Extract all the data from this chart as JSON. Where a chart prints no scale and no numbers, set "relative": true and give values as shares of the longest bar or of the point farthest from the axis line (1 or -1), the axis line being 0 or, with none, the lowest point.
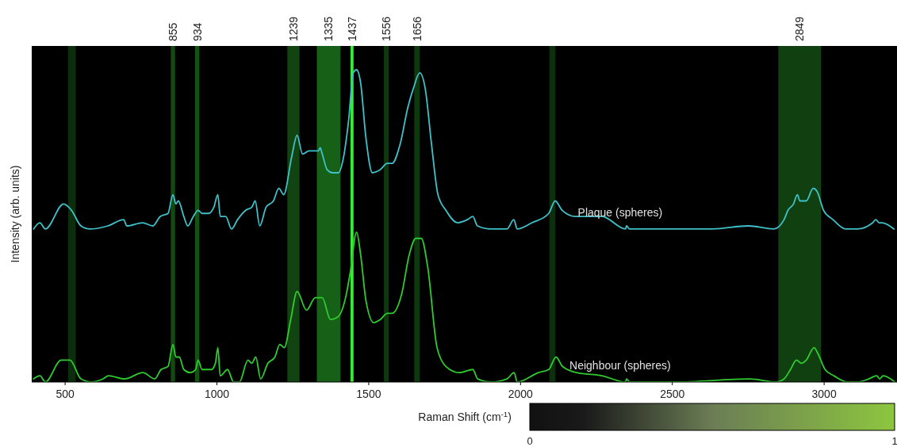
{
  "chart_data": {
    "type": "line",
    "relative": true,
    "xlabel": "Raman Shift (cm$^{-1}$)",
    "ylabel": "Intensity (arb. units)",
    "xlim": [
      390,
      3240
    ],
    "xticks": [
      500,
      1000,
      1500,
      2000,
      2500,
      3000
    ],
    "clim": [
      0,
      1
    ],
    "cticks": [
      0,
      1
    ],
    "bands": [
      {
        "axis": "x",
        "from": 510,
        "to": 535,
        "color": "#0c2e0c"
      },
      {
        "axis": "x",
        "from": 848,
        "to": 862,
        "color": "#124a12",
        "label": "855"
      },
      {
        "axis": "x",
        "from": 928,
        "to": 942,
        "color": "#145214",
        "label": "934"
      },
      {
        "axis": "x",
        "from": 1232,
        "to": 1272,
        "color": "#114411",
        "label": "1239"
      },
      {
        "axis": "x",
        "from": 1329,
        "to": 1407,
        "color": "#176017",
        "label": "1335"
      },
      {
        "axis": "x",
        "from": 1440,
        "to": 1450,
        "color": "#33ee33",
        "label": "1437"
      },
      {
        "axis": "x",
        "from": 1550,
        "to": 1566,
        "color": "#0e380e",
        "label": "1556"
      },
      {
        "axis": "x",
        "from": 1650,
        "to": 1668,
        "color": "#0e380e",
        "label": "1656"
      },
      {
        "axis": "x",
        "from": 2095,
        "to": 2115,
        "color": "#0c300c"
      },
      {
        "axis": "x",
        "from": 2849,
        "to": 2990,
        "color": "#103f10",
        "label": "2849"
      }
    ],
    "series": [
      {
        "name": "Plaque (spheres)",
        "color": "#3fc1c9",
        "x": [
          396,
          417,
          435,
          495,
          521,
          552,
          581,
          641,
          693,
          703,
          755,
          789,
          813,
          839,
          855,
          865,
          873,
          891,
          904,
          922,
          938,
          951,
          972,
          990,
          1003,
          1011,
          1029,
          1048,
          1068,
          1095,
          1115,
          1126,
          1141,
          1162,
          1186,
          1204,
          1220,
          1246,
          1264,
          1282,
          1303,
          1334,
          1340,
          1347,
          1363,
          1381,
          1400,
          1415,
          1434,
          1449,
          1460,
          1473,
          1491,
          1512,
          1538,
          1561,
          1577,
          1603,
          1629,
          1647,
          1668,
          1686,
          1707,
          1728,
          1754,
          1793,
          1825,
          1843,
          1858,
          1903,
          1955,
          1978,
          1989,
          2038,
          2093,
          2114,
          2137,
          2182,
          2268,
          2346,
          2349,
          2359,
          2450,
          2633,
          2750,
          2834,
          2868,
          2881,
          2899,
          2912,
          2920,
          2941,
          2964,
          2977,
          2998,
          3029,
          3071,
          3110,
          3160,
          3170,
          3181,
          3191,
          3230
        ],
        "values": [
          0.49,
          0.51,
          0.49,
          0.57,
          0.55,
          0.5,
          0.49,
          0.5,
          0.52,
          0.5,
          0.51,
          0.5,
          0.53,
          0.54,
          0.6,
          0.57,
          0.58,
          0.53,
          0.5,
          0.53,
          0.55,
          0.54,
          0.54,
          0.56,
          0.6,
          0.53,
          0.53,
          0.49,
          0.52,
          0.55,
          0.56,
          0.58,
          0.5,
          0.56,
          0.58,
          0.62,
          0.6,
          0.72,
          0.79,
          0.73,
          0.74,
          0.74,
          0.75,
          0.73,
          0.68,
          0.67,
          0.67,
          0.71,
          0.84,
          0.99,
          1.0,
          0.96,
          0.78,
          0.67,
          0.68,
          0.7,
          0.7,
          0.76,
          0.88,
          0.94,
          0.99,
          0.94,
          0.76,
          0.6,
          0.55,
          0.51,
          0.52,
          0.53,
          0.5,
          0.49,
          0.49,
          0.52,
          0.49,
          0.51,
          0.54,
          0.58,
          0.55,
          0.53,
          0.53,
          0.49,
          0.5,
          0.49,
          0.49,
          0.49,
          0.5,
          0.49,
          0.52,
          0.55,
          0.57,
          0.6,
          0.58,
          0.58,
          0.62,
          0.61,
          0.55,
          0.52,
          0.49,
          0.49,
          0.51,
          0.52,
          0.51,
          0.51,
          0.49
        ]
      },
      {
        "name": "Neighbour (spheres)",
        "color": "#2ecc2e",
        "x": [
          396,
          417,
          435,
          487,
          516,
          552,
          586,
          625,
          643,
          696,
          756,
          795,
          816,
          839,
          855,
          865,
          876,
          891,
          912,
          930,
          938,
          951,
          982,
          995,
          1003,
          1011,
          1035,
          1055,
          1074,
          1102,
          1115,
          1128,
          1144,
          1168,
          1191,
          1207,
          1222,
          1243,
          1264,
          1295,
          1324,
          1347,
          1374,
          1400,
          1426,
          1439,
          1460,
          1473,
          1491,
          1517,
          1538,
          1561,
          1577,
          1608,
          1634,
          1655,
          1673,
          1694,
          1725,
          1754,
          1799,
          1843,
          1859,
          1903,
          1955,
          1979,
          1989,
          2059,
          2093,
          2117,
          2138,
          2185,
          2268,
          2346,
          2349,
          2359,
          2510,
          2756,
          2842,
          2868,
          2889,
          2909,
          2925,
          2941,
          2967,
          2980,
          3003,
          3032,
          3076,
          3110,
          3147,
          3173,
          3183,
          3194,
          3233
        ],
        "values": [
          0.01,
          0.02,
          0.0,
          0.07,
          0.07,
          0.01,
          0,
          0.01,
          0.02,
          0.01,
          0.03,
          0.01,
          0.04,
          0.05,
          0.12,
          0.08,
          0.08,
          0.04,
          0.03,
          0.04,
          0.07,
          0.04,
          0.04,
          0.06,
          0.11,
          0.02,
          0.04,
          0,
          0.0,
          0.07,
          0.06,
          0.08,
          0.01,
          0.06,
          0.08,
          0.12,
          0.11,
          0.2,
          0.29,
          0.23,
          0.27,
          0.27,
          0.2,
          0.21,
          0.28,
          0.35,
          0.48,
          0.41,
          0.26,
          0.19,
          0.2,
          0.22,
          0.22,
          0.28,
          0.41,
          0.46,
          0.46,
          0.37,
          0.11,
          0.05,
          0.03,
          0.04,
          0.01,
          0,
          0.01,
          0.03,
          0.0,
          0.03,
          0.04,
          0.08,
          0.05,
          0.03,
          0.02,
          0.0,
          0.01,
          0,
          0.0,
          0.01,
          0,
          0.01,
          0.04,
          0.07,
          0.06,
          0.07,
          0.11,
          0.09,
          0.04,
          0.02,
          0.0,
          0,
          0.01,
          0.02,
          0.01,
          0.02,
          0
        ]
      }
    ]
  }
}
